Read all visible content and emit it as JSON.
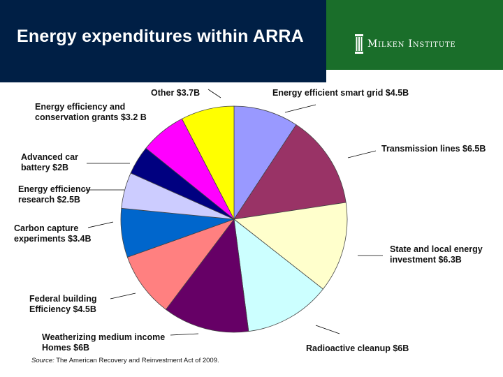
{
  "header": {
    "title": "Energy expenditures within ARRA",
    "logo_text": "Milken Institute",
    "logo_icon": "pillar-icon",
    "navy_color": "#001f45",
    "green_color": "#1a6e2a"
  },
  "chart_data": {
    "type": "pie",
    "title": "",
    "unit": "billion USD",
    "slices": [
      {
        "label": "Energy efficient smart grid $4.5B",
        "value": 4.5,
        "color": "#9999ff"
      },
      {
        "label": "Transmission lines $6.5B",
        "value": 6.5,
        "color": "#993366"
      },
      {
        "label": "State and local energy\ninvestment $6.3B",
        "value": 6.3,
        "color": "#ffffcc"
      },
      {
        "label": "Radioactive cleanup $6B",
        "value": 6.0,
        "color": "#ccffff"
      },
      {
        "label": "Weatherizing medium income\nHomes $6B",
        "value": 6.0,
        "color": "#660066"
      },
      {
        "label": "Federal building\nEfficiency $4.5B",
        "value": 4.5,
        "color": "#ff8080"
      },
      {
        "label": "Carbon capture\nexperiments $3.4B",
        "value": 3.4,
        "color": "#0066cc"
      },
      {
        "label": "Energy efficiency\nresearch $2.5B",
        "value": 2.5,
        "color": "#ccccff"
      },
      {
        "label": "Advanced car\nbattery $2B",
        "value": 2.0,
        "color": "#000080"
      },
      {
        "label": "Energy efficiency and\nconservation grants $3.2 B",
        "value": 3.2,
        "color": "#ff00ff"
      },
      {
        "label": "Other $3.7B",
        "value": 3.7,
        "color": "#ffff00"
      }
    ]
  },
  "source": {
    "prefix": "Source:",
    "text": " The American Recovery and Reinvestment Act of 2009."
  }
}
